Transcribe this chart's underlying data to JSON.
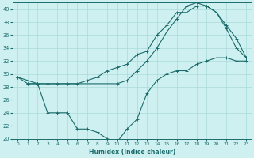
{
  "title": "",
  "xlabel": "Humidex (Indice chaleur)",
  "bg_color": "#cff0f0",
  "grid_color": "#aadada",
  "line_color": "#1a6b6b",
  "xlim": [
    -0.5,
    23.5
  ],
  "ylim": [
    20,
    41
  ],
  "yticks": [
    20,
    22,
    24,
    26,
    28,
    30,
    32,
    34,
    36,
    38,
    40
  ],
  "xticks": [
    0,
    1,
    2,
    3,
    4,
    5,
    6,
    7,
    8,
    9,
    10,
    11,
    12,
    13,
    14,
    15,
    16,
    17,
    18,
    19,
    20,
    21,
    22,
    23
  ],
  "line1_x": [
    0,
    1,
    2,
    3,
    4,
    5,
    6,
    7,
    8,
    9,
    10,
    11,
    12,
    13,
    14,
    15,
    16,
    17,
    18,
    19,
    20,
    21,
    22,
    23
  ],
  "line1_y": [
    29.5,
    28.5,
    28.5,
    28.5,
    28.5,
    28.5,
    28.5,
    29.0,
    29.5,
    30.5,
    31.0,
    31.5,
    33.0,
    33.5,
    36.0,
    37.5,
    39.5,
    39.5,
    40.5,
    40.5,
    39.5,
    37.5,
    35.5,
    32.5
  ],
  "line2_x": [
    0,
    2,
    10,
    11,
    12,
    13,
    14,
    15,
    16,
    17,
    18,
    19,
    20,
    21,
    22,
    23
  ],
  "line2_y": [
    29.5,
    28.5,
    28.5,
    29.0,
    30.5,
    32.0,
    34.0,
    36.5,
    38.5,
    40.5,
    41.0,
    40.5,
    39.5,
    37.0,
    34.0,
    32.5
  ],
  "line3_x": [
    1,
    2,
    3,
    4,
    5,
    6,
    7,
    8,
    9,
    10,
    11,
    12,
    13,
    14,
    15,
    16,
    17,
    18,
    19,
    20,
    21,
    22,
    23
  ],
  "line3_y": [
    28.5,
    28.5,
    24.0,
    24.0,
    24.0,
    21.5,
    21.5,
    21.0,
    20.0,
    19.5,
    21.5,
    23.0,
    27.0,
    29.0,
    30.0,
    30.5,
    30.5,
    31.5,
    32.0,
    32.5,
    32.5,
    32.0,
    32.0
  ]
}
